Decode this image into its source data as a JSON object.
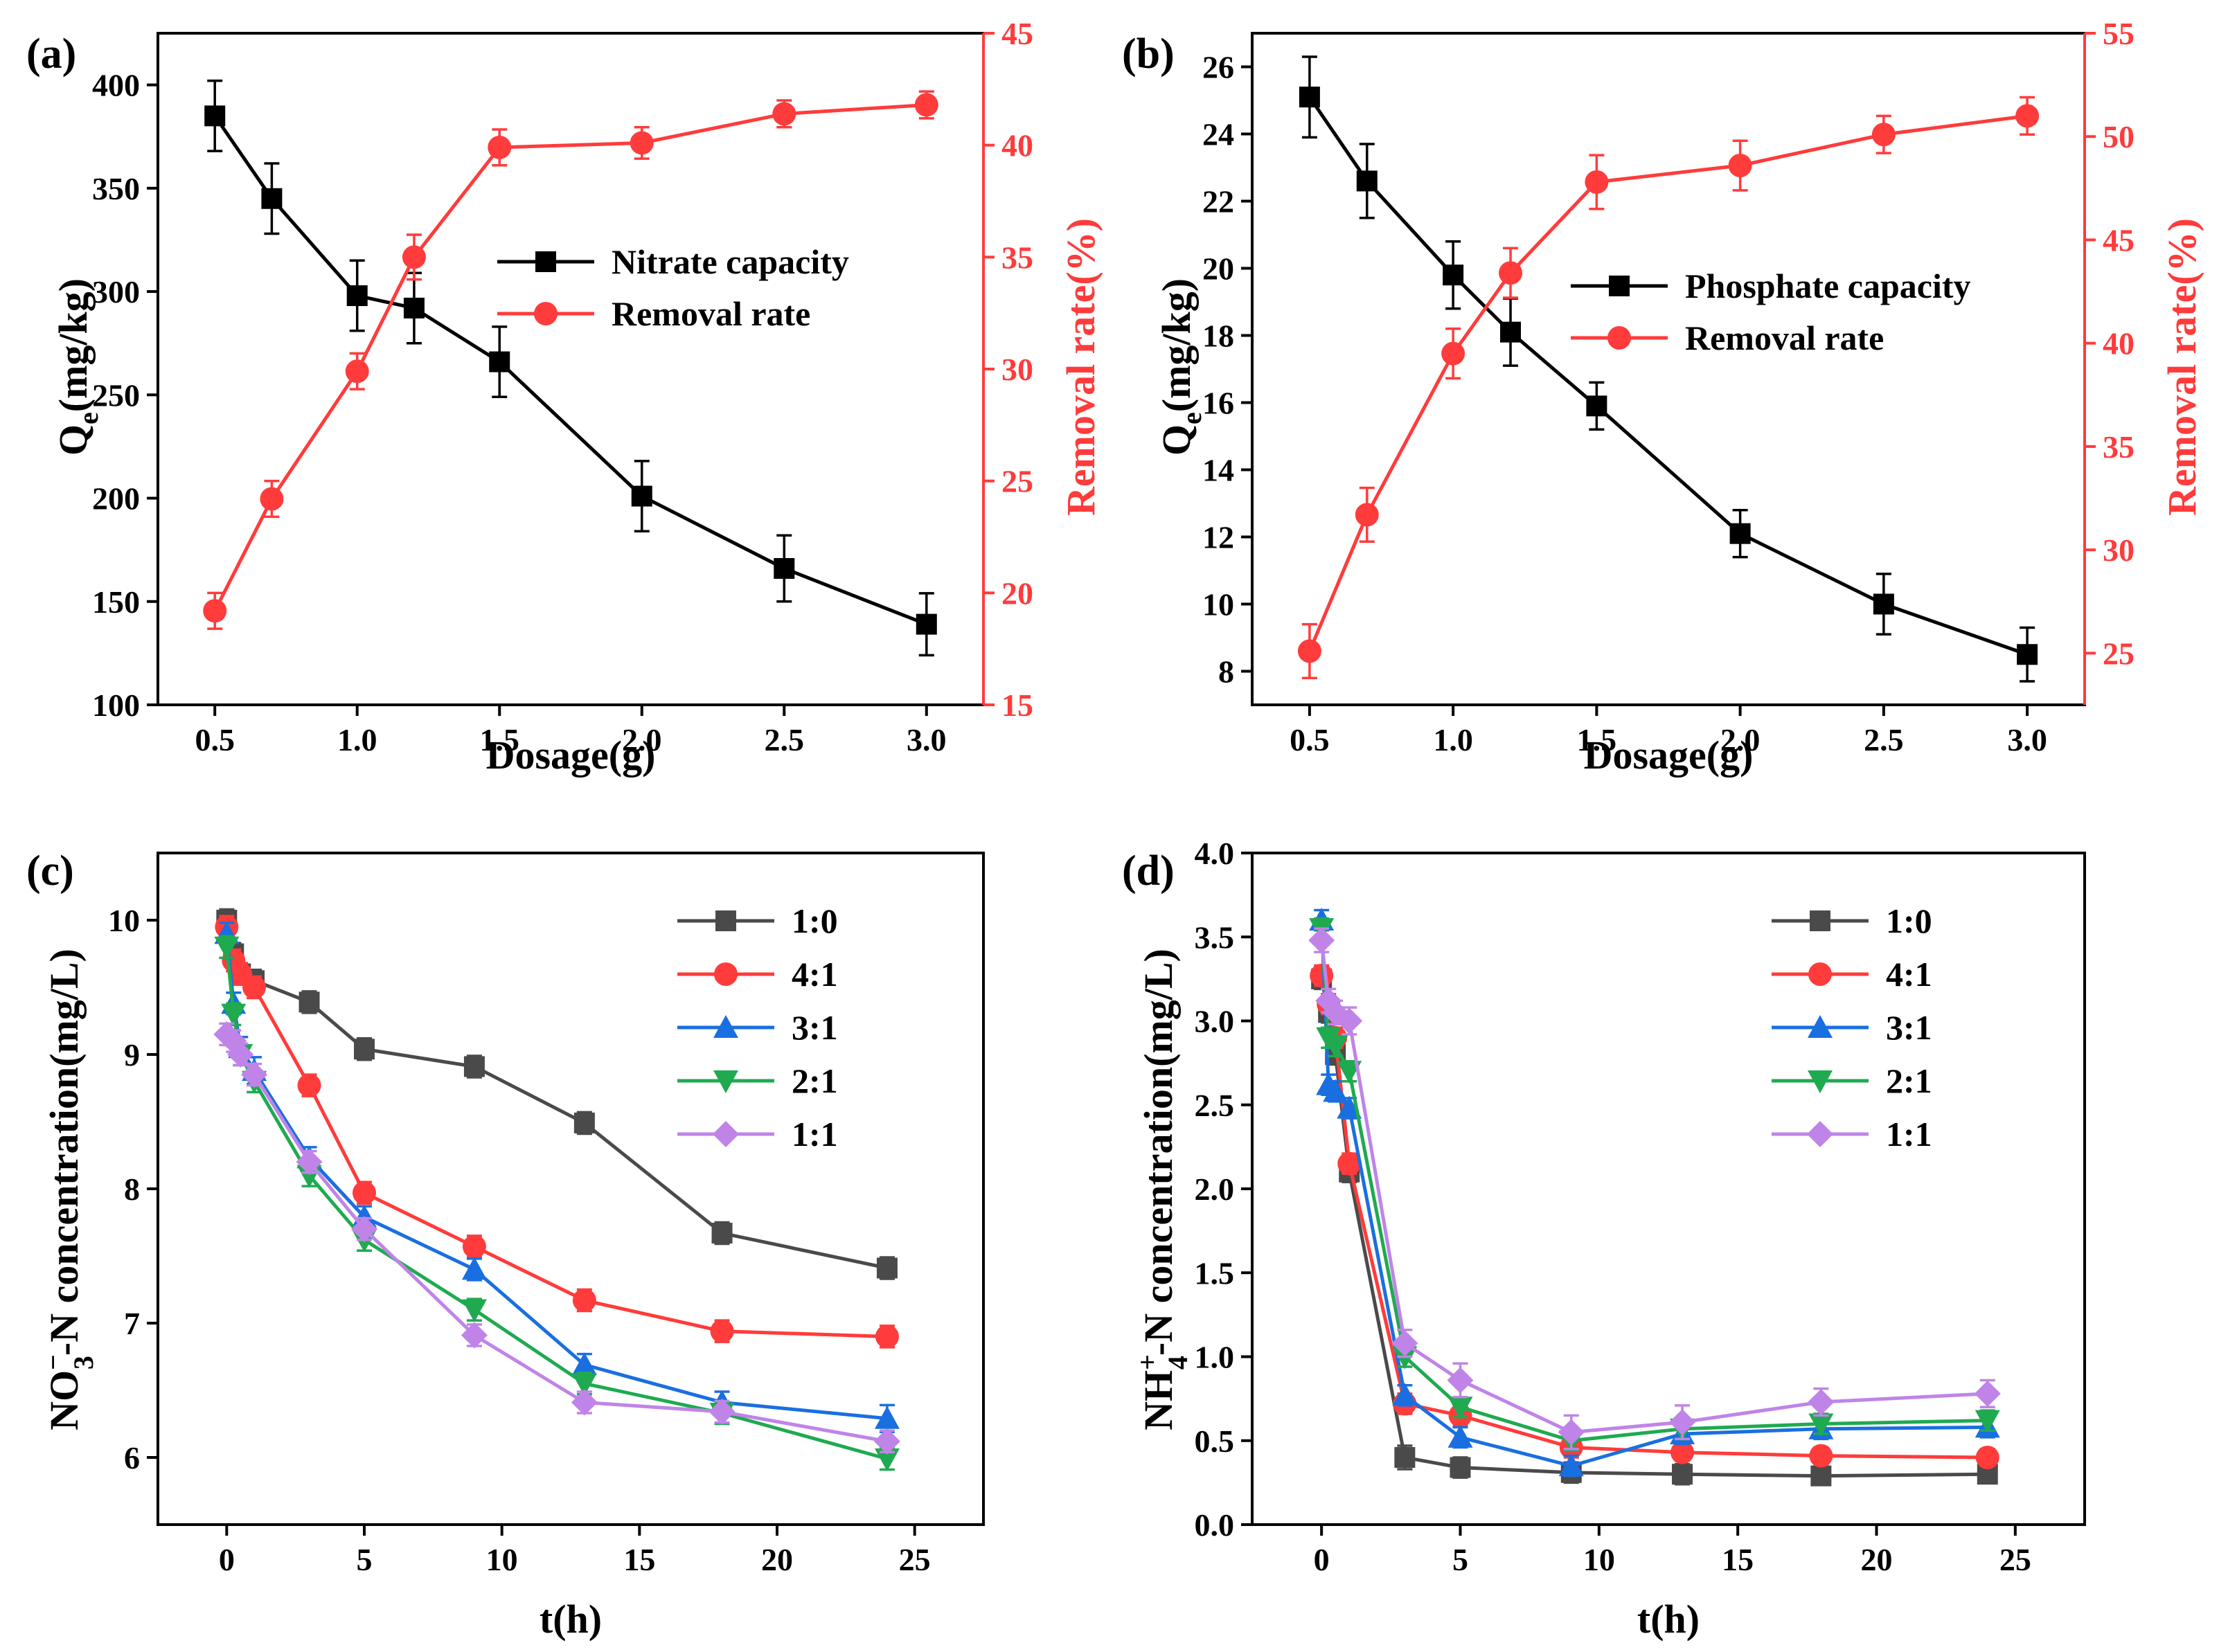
{
  "colors": {
    "black": "#000000",
    "red": "#ff3b3b",
    "gray": "#4a4a4a",
    "blue": "#1a6fe0",
    "green": "#1faa50",
    "purple": "#c084e8"
  },
  "chart_data": [
    {
      "id": "a",
      "type": "line",
      "panel_label": "(a)",
      "xlabel": "Dosage(g)",
      "ylabel": "Q",
      "ylabel_sub": "e",
      "ylabel_rest": "(mg/kg)",
      "y2label": "Removal rate(%)",
      "xlim": [
        0.3,
        3.2
      ],
      "xticks": [
        0.5,
        1.0,
        1.5,
        2.0,
        2.5,
        3.0
      ],
      "xtick_labels": [
        "0.5",
        "1.0",
        "1.5",
        "2.0",
        "2.5",
        "3.0"
      ],
      "ylim": [
        100,
        425
      ],
      "yticks": [
        100,
        150,
        200,
        250,
        300,
        350,
        400
      ],
      "y2lim": [
        15,
        45
      ],
      "y2ticks": [
        15,
        20,
        25,
        30,
        35,
        40,
        45
      ],
      "legend_position": "middle-right",
      "series": [
        {
          "name": "Nitrate capacity",
          "axis": "left",
          "color": "black",
          "marker": "square",
          "x": [
            0.5,
            0.7,
            1.0,
            1.2,
            1.5,
            2.0,
            2.5,
            3.0
          ],
          "y": [
            385,
            345,
            298,
            292,
            266,
            201,
            166,
            139
          ],
          "err": [
            17,
            17,
            17,
            17,
            17,
            17,
            16,
            15
          ]
        },
        {
          "name": "Removal rate",
          "axis": "right",
          "color": "red",
          "marker": "circle",
          "x": [
            0.5,
            0.7,
            1.0,
            1.2,
            1.5,
            2.0,
            2.5,
            3.0
          ],
          "y": [
            19.2,
            24.2,
            29.9,
            35.0,
            39.9,
            40.1,
            41.4,
            41.8
          ],
          "err": [
            0.8,
            0.8,
            0.8,
            1.0,
            0.8,
            0.7,
            0.6,
            0.6
          ]
        }
      ]
    },
    {
      "id": "b",
      "type": "line",
      "panel_label": "(b)",
      "xlabel": "Dosage(g)",
      "ylabel": "Q",
      "ylabel_sub": "e",
      "ylabel_rest": "(mg/kg)",
      "y2label": "Removal rate(%)",
      "xlim": [
        0.3,
        3.2
      ],
      "xticks": [
        0.5,
        1.0,
        1.5,
        2.0,
        2.5,
        3.0
      ],
      "xtick_labels": [
        "0.5",
        "1.0",
        "1.5",
        "2.0",
        "2.5",
        "3.0"
      ],
      "ylim": [
        7,
        27
      ],
      "yticks": [
        8,
        10,
        12,
        14,
        16,
        18,
        20,
        22,
        24,
        26
      ],
      "y2lim": [
        22.5,
        55
      ],
      "y2ticks": [
        25,
        30,
        35,
        40,
        45,
        50,
        55
      ],
      "legend_position": "middle-right",
      "series": [
        {
          "name": "Phosphate capacity",
          "axis": "left",
          "color": "black",
          "marker": "square",
          "x": [
            0.5,
            0.7,
            1.0,
            1.2,
            1.5,
            2.0,
            2.5,
            3.0
          ],
          "y": [
            25.1,
            22.6,
            19.8,
            18.1,
            15.9,
            12.1,
            10.0,
            8.5
          ],
          "err": [
            1.2,
            1.1,
            1.0,
            1.0,
            0.7,
            0.7,
            0.9,
            0.8
          ]
        },
        {
          "name": "Removal rate",
          "axis": "right",
          "color": "red",
          "marker": "circle",
          "x": [
            0.5,
            0.7,
            1.0,
            1.2,
            1.5,
            2.0,
            2.5,
            3.0
          ],
          "y": [
            25.1,
            31.7,
            39.5,
            43.4,
            47.8,
            48.6,
            50.1,
            51.0
          ],
          "err": [
            1.3,
            1.3,
            1.2,
            1.2,
            1.3,
            1.2,
            0.9,
            0.9
          ]
        }
      ]
    },
    {
      "id": "c",
      "type": "line",
      "panel_label": "(c)",
      "xlabel": "t(h)",
      "ylabel": "NO",
      "ylabel_sub": "3",
      "ylabel_sup": "−",
      "ylabel_rest": "-N concentration(mg/L)",
      "xlim": [
        -2.5,
        27.5
      ],
      "xticks": [
        0,
        5,
        10,
        15,
        20,
        25
      ],
      "xtick_labels": [
        "0",
        "5",
        "10",
        "15",
        "20",
        "25"
      ],
      "ylim": [
        5.5,
        10.5
      ],
      "yticks": [
        6,
        7,
        8,
        9,
        10
      ],
      "legend_position": "top-right",
      "series": [
        {
          "name": "1:0",
          "color": "gray",
          "marker": "square",
          "x": [
            0,
            0.25,
            0.5,
            1,
            3,
            5,
            9,
            13,
            18,
            24
          ],
          "y": [
            10.0,
            9.75,
            9.6,
            9.55,
            9.39,
            9.04,
            8.91,
            8.49,
            7.67,
            7.41
          ],
          "err": [
            0.08,
            0.08,
            0.08,
            0.08,
            0.08,
            0.08,
            0.08,
            0.08,
            0.08,
            0.08
          ]
        },
        {
          "name": "4:1",
          "color": "red",
          "marker": "circle",
          "x": [
            0,
            0.25,
            0.5,
            1,
            3,
            5,
            9,
            13,
            18,
            24
          ],
          "y": [
            9.95,
            9.7,
            9.6,
            9.5,
            8.77,
            7.97,
            7.57,
            7.17,
            6.94,
            6.9
          ],
          "err": [
            0.08,
            0.08,
            0.08,
            0.08,
            0.08,
            0.08,
            0.08,
            0.08,
            0.08,
            0.08
          ]
        },
        {
          "name": "3:1",
          "color": "blue",
          "marker": "triangle",
          "x": [
            0,
            0.25,
            0.5,
            1,
            3,
            5,
            9,
            13,
            18,
            24
          ],
          "y": [
            9.9,
            9.38,
            9.05,
            8.88,
            8.23,
            7.79,
            7.4,
            6.69,
            6.41,
            6.29
          ],
          "err": [
            0.08,
            0.08,
            0.08,
            0.1,
            0.08,
            0.08,
            0.08,
            0.08,
            0.08,
            0.1
          ]
        },
        {
          "name": "2:1",
          "color": "green",
          "marker": "triangle-down",
          "x": [
            0,
            0.25,
            0.5,
            1,
            3,
            5,
            9,
            13,
            18,
            24
          ],
          "y": [
            9.8,
            9.3,
            9.0,
            8.8,
            8.1,
            7.62,
            7.1,
            6.55,
            6.33,
            5.99
          ],
          "err": [
            0.08,
            0.08,
            0.08,
            0.08,
            0.08,
            0.08,
            0.08,
            0.08,
            0.08,
            0.08
          ]
        },
        {
          "name": "1:1",
          "color": "purple",
          "marker": "diamond",
          "x": [
            0,
            0.25,
            0.5,
            1,
            3,
            5,
            9,
            13,
            18,
            24
          ],
          "y": [
            9.15,
            9.1,
            9.0,
            8.85,
            8.2,
            7.7,
            6.91,
            6.41,
            6.34,
            6.12
          ],
          "err": [
            0.08,
            0.08,
            0.08,
            0.08,
            0.08,
            0.08,
            0.08,
            0.08,
            0.08,
            0.08
          ]
        }
      ]
    },
    {
      "id": "d",
      "type": "line",
      "panel_label": "(d)",
      "xlabel": "t(h)",
      "ylabel": "NH",
      "ylabel_sub": "4",
      "ylabel_sup": "+",
      "ylabel_rest": "-N concentration(mg/L)",
      "xlim": [
        -2.5,
        27.5
      ],
      "xticks": [
        0,
        5,
        10,
        15,
        20,
        25
      ],
      "xtick_labels": [
        "0",
        "5",
        "10",
        "15",
        "20",
        "25"
      ],
      "ylim": [
        0.0,
        4.0
      ],
      "yticks": [
        0.0,
        0.5,
        1.0,
        1.5,
        2.0,
        2.5,
        3.0,
        3.5,
        4.0
      ],
      "ytick_labels": [
        "0.0",
        "0.5",
        "1.0",
        "1.5",
        "2.0",
        "2.5",
        "3.0",
        "3.5",
        "4.0"
      ],
      "legend_position": "top-right",
      "series": [
        {
          "name": "1:0",
          "color": "gray",
          "marker": "square",
          "x": [
            0,
            0.25,
            0.5,
            1,
            3,
            5,
            9,
            13,
            18,
            24
          ],
          "y": [
            3.25,
            3.05,
            2.8,
            2.1,
            0.4,
            0.34,
            0.31,
            0.3,
            0.29,
            0.3
          ],
          "err": [
            0.06,
            0.06,
            0.06,
            0.06,
            0.07,
            0.06,
            0.06,
            0.06,
            0.05,
            0.05
          ]
        },
        {
          "name": "4:1",
          "color": "red",
          "marker": "circle",
          "x": [
            0,
            0.25,
            0.5,
            1,
            3,
            5,
            9,
            13,
            18,
            24
          ],
          "y": [
            3.27,
            3.1,
            2.9,
            2.15,
            0.72,
            0.65,
            0.46,
            0.43,
            0.41,
            0.4
          ],
          "err": [
            0.06,
            0.06,
            0.06,
            0.06,
            0.06,
            0.06,
            0.06,
            0.05,
            0.05,
            0.05
          ]
        },
        {
          "name": "3:1",
          "color": "blue",
          "marker": "triangle",
          "x": [
            0,
            0.25,
            0.5,
            1,
            3,
            5,
            9,
            13,
            18,
            24
          ],
          "y": [
            3.6,
            2.62,
            2.58,
            2.48,
            0.77,
            0.52,
            0.35,
            0.54,
            0.57,
            0.58
          ],
          "err": [
            0.06,
            0.06,
            0.06,
            0.06,
            0.06,
            0.06,
            0.06,
            0.06,
            0.06,
            0.06
          ]
        },
        {
          "name": "2:1",
          "color": "green",
          "marker": "triangle-down",
          "x": [
            0,
            0.25,
            0.5,
            1,
            3,
            5,
            9,
            13,
            18,
            24
          ],
          "y": [
            3.55,
            2.9,
            2.85,
            2.7,
            1.0,
            0.7,
            0.5,
            0.57,
            0.6,
            0.62
          ],
          "err": [
            0.06,
            0.06,
            0.06,
            0.06,
            0.06,
            0.06,
            0.06,
            0.06,
            0.06,
            0.06
          ]
        },
        {
          "name": "1:1",
          "color": "purple",
          "marker": "diamond",
          "x": [
            0,
            0.25,
            0.5,
            1,
            3,
            5,
            9,
            13,
            18,
            24
          ],
          "y": [
            3.48,
            3.12,
            3.05,
            3.0,
            1.08,
            0.86,
            0.55,
            0.61,
            0.73,
            0.78
          ],
          "err": [
            0.07,
            0.07,
            0.07,
            0.08,
            0.08,
            0.1,
            0.1,
            0.1,
            0.08,
            0.08
          ]
        }
      ]
    }
  ]
}
